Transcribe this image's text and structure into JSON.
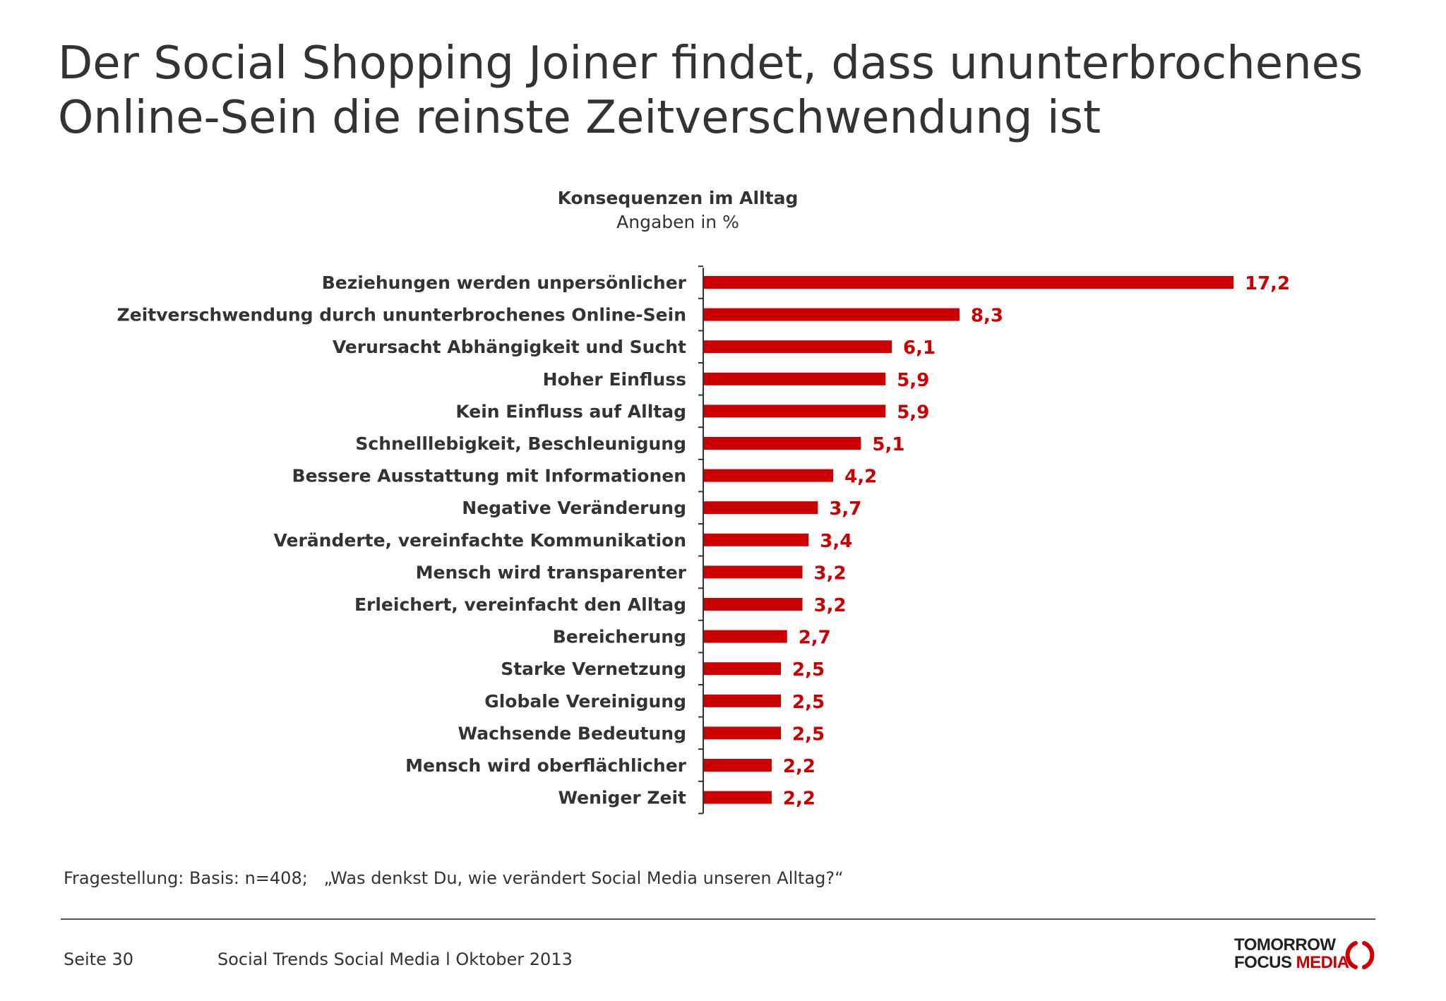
{
  "header": {
    "title_line1": "Der Social Shopping Joiner findet, dass ununterbrochenes",
    "title_line2": "Online-Sein die reinste Zeitverschwendung ist"
  },
  "chart_data": {
    "type": "bar",
    "orientation": "horizontal",
    "title": "Konsequenzen im Alltag",
    "subtitle": "Angaben in %",
    "categories": [
      "Beziehungen werden unpersönlicher",
      "Zeitverschwendung durch ununterbrochenes Online-Sein",
      "Verursacht Abhängigkeit und Sucht",
      "Hoher Einfluss",
      "Kein Einfluss auf Alltag",
      "Schnelllebigkeit, Beschleunigung",
      "Bessere Ausstattung mit Informationen",
      "Negative Veränderung",
      "Veränderte, vereinfachte Kommunikation",
      "Mensch wird transparenter",
      "Erleichert, vereinfacht den Alltag",
      "Bereicherung",
      "Starke Vernetzung",
      "Globale Vereinigung",
      "Wachsende Bedeutung",
      "Mensch wird oberflächlicher",
      "Weniger Zeit"
    ],
    "values": [
      17.2,
      8.3,
      6.1,
      5.9,
      5.9,
      5.1,
      4.2,
      3.7,
      3.4,
      3.2,
      3.2,
      2.7,
      2.5,
      2.5,
      2.5,
      2.2,
      2.2
    ],
    "value_labels": [
      "17,2",
      "8,3",
      "6,1",
      "5,9",
      "5,9",
      "5,1",
      "4,2",
      "3,7",
      "3,4",
      "3,2",
      "3,2",
      "2,7",
      "2,5",
      "2,5",
      "2,5",
      "2,2",
      "2,2"
    ],
    "xlim": [
      0,
      17.2
    ],
    "grid": false,
    "legend": "none",
    "bar_color": "#cc0000",
    "label_color": "#cc0000"
  },
  "footnote": {
    "text": "Fragestellung: Basis: n=408;   „Was denkst Du, wie verändert Social Media unseren Alltag?“"
  },
  "footer": {
    "page": "Seite 30",
    "report": "Social Trends Social Media l Oktober 2013",
    "logo_line1": "TOMORROW",
    "logo_line2_a": "FOCUS ",
    "logo_line2_b": "MEDIA"
  },
  "colors": {
    "accent": "#cc0000",
    "text": "#333333"
  }
}
